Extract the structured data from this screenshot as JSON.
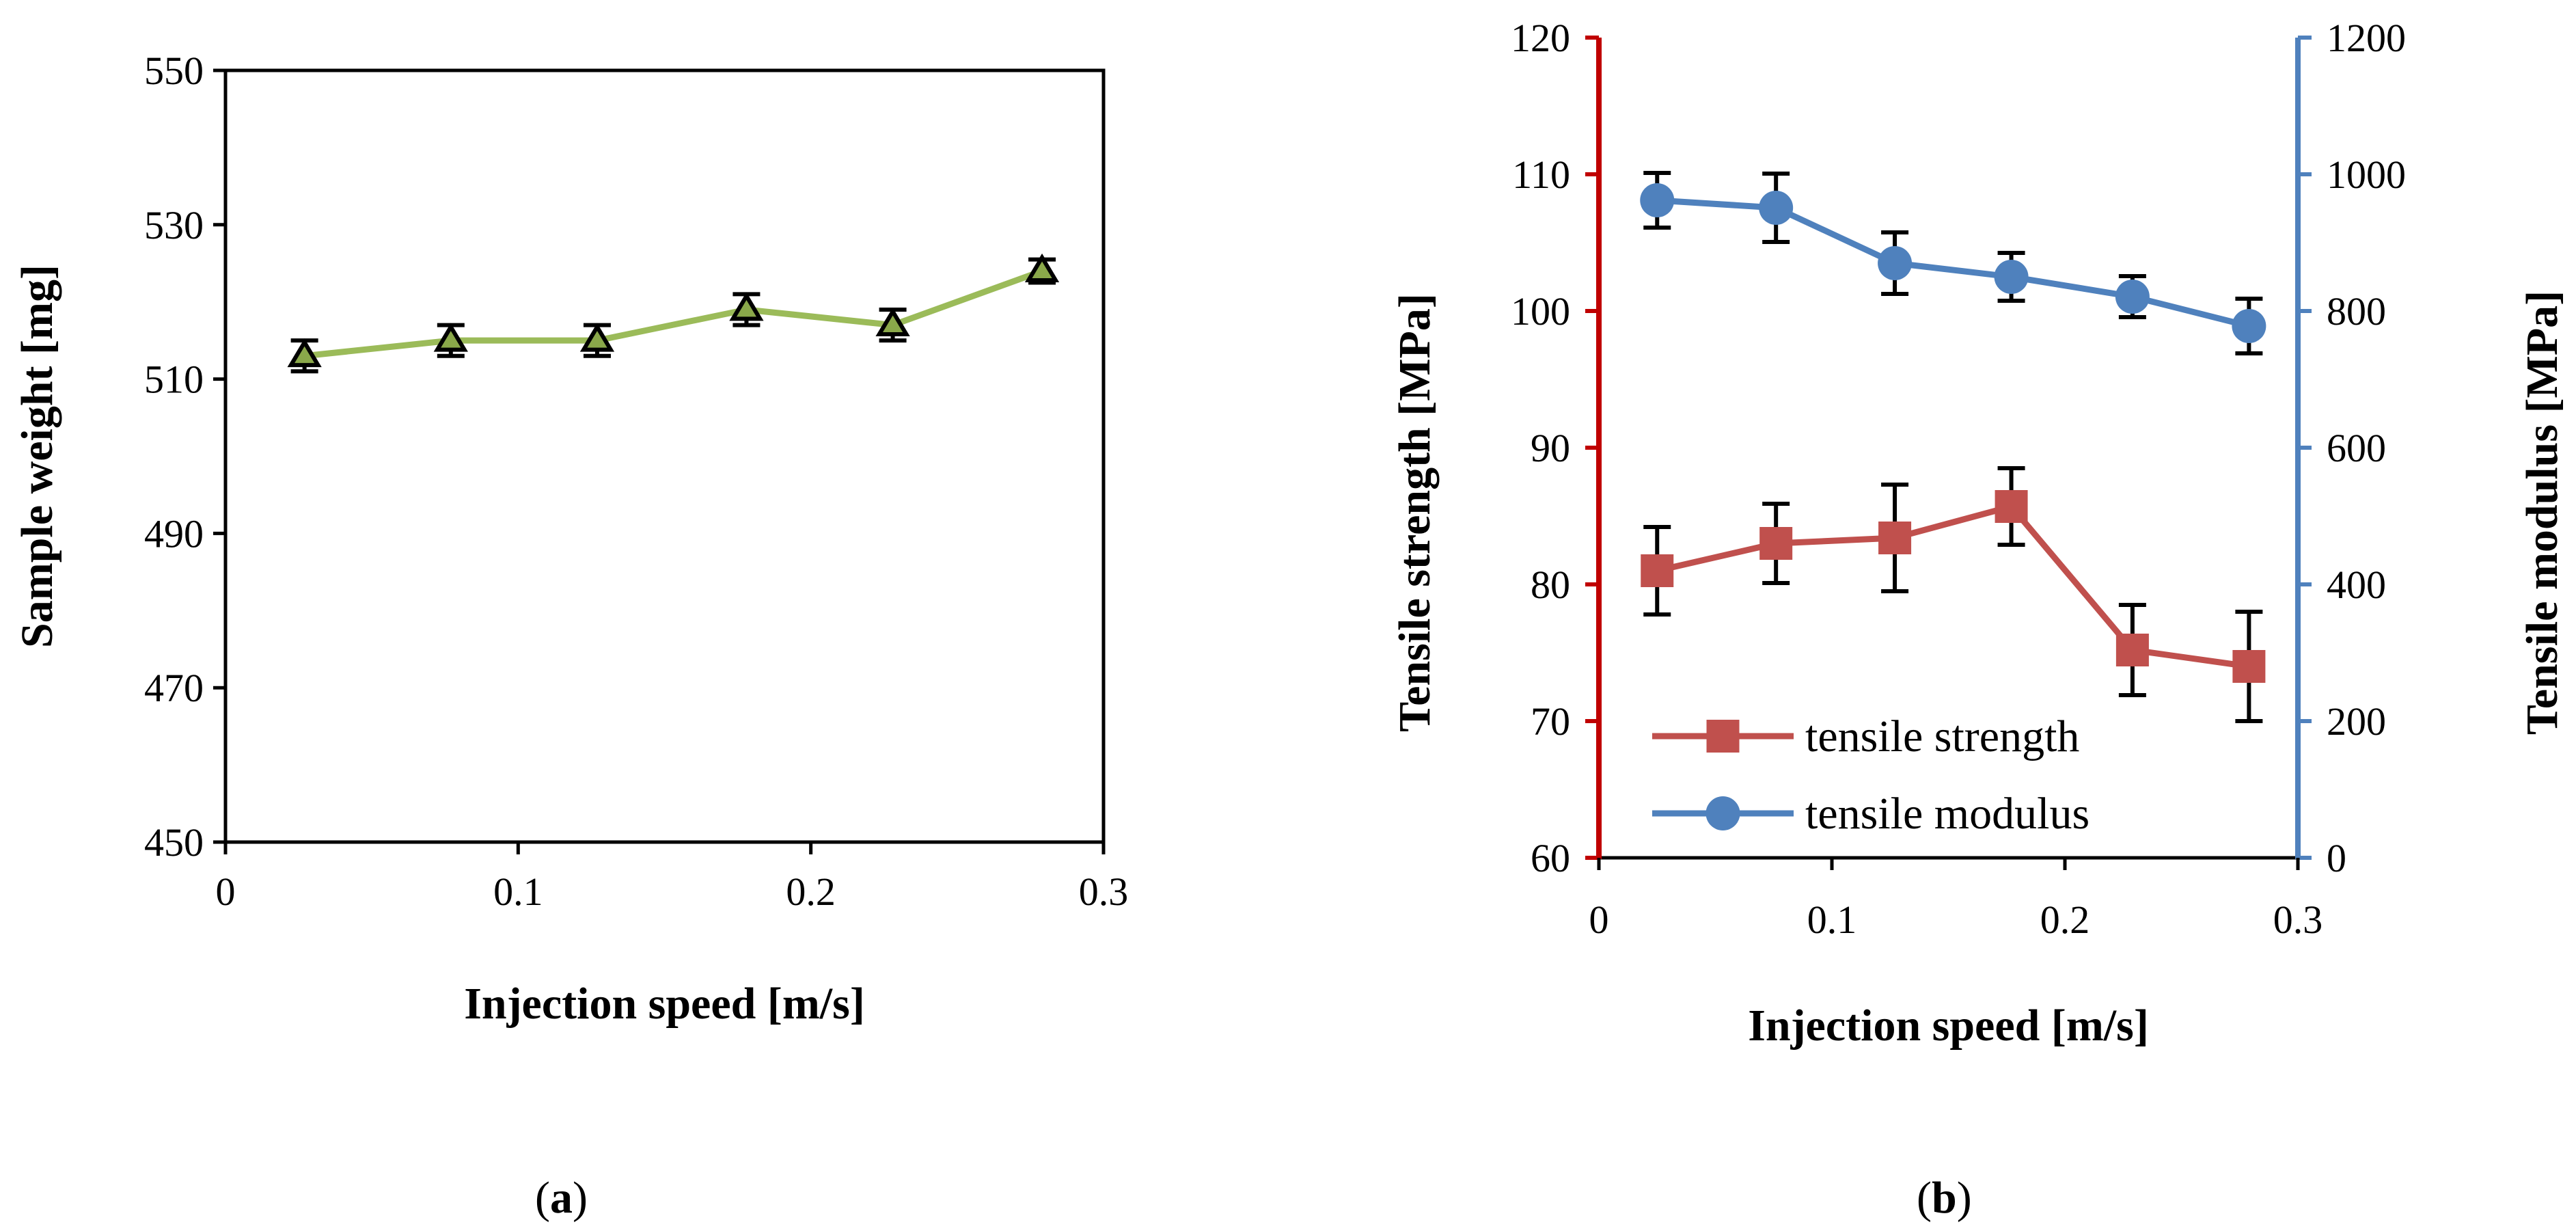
{
  "colors": {
    "weight_line": "#9bbb59",
    "weight_marker_fill": "#8aa84a",
    "strength": "#c0504d",
    "strength_axis": "#c00000",
    "modulus": "#4f81bd",
    "modulus_axis": "#4f81bd",
    "errorbar": "#000000"
  },
  "captions": {
    "a": "a",
    "b": "b"
  },
  "chart_data": [
    {
      "type": "line",
      "panel": "a",
      "xlabel": "Injection speed [m/s]",
      "ylabel": "Sample weight [mg]",
      "xlim": [
        0,
        0.3
      ],
      "ylim": [
        450,
        550
      ],
      "xticks": [
        "0",
        "0.1",
        "0.2",
        "0.3"
      ],
      "yticks": [
        "450",
        "470",
        "490",
        "510",
        "530",
        "550"
      ],
      "grid": false,
      "series": [
        {
          "marker": "triangle",
          "x": [
            0.027,
            0.077,
            0.127,
            0.178,
            0.228,
            0.279
          ],
          "values": [
            513,
            515,
            515,
            519,
            517,
            524
          ],
          "error": [
            2,
            2,
            2,
            2,
            2,
            1.5
          ]
        }
      ]
    },
    {
      "type": "line",
      "panel": "b",
      "xlabel": "Injection speed [m/s]",
      "ylabel": "Tensile strength [MPa]",
      "y2label": "Tensile modulus [MPa]",
      "xlim": [
        0,
        0.3
      ],
      "ylim": [
        60,
        120
      ],
      "y2lim": [
        0,
        1200
      ],
      "xticks": [
        "0",
        "0.1",
        "0.2",
        "0.3"
      ],
      "yticks": [
        "60",
        "70",
        "80",
        "90",
        "100",
        "110",
        "120"
      ],
      "y2ticks": [
        "0",
        "200",
        "400",
        "600",
        "800",
        "1000",
        "1200"
      ],
      "grid": false,
      "legend": "bottom-left",
      "series": [
        {
          "name": "tensile strength",
          "axis": "left",
          "marker": "square",
          "x": [
            0.025,
            0.076,
            0.127,
            0.177,
            0.229,
            0.279
          ],
          "values": [
            81.0,
            83.0,
            83.4,
            85.7,
            75.2,
            74.0
          ],
          "error": [
            3.2,
            2.9,
            3.9,
            2.8,
            3.3,
            4.0
          ]
        },
        {
          "name": "tensile modulus",
          "axis": "right",
          "marker": "circle",
          "x": [
            0.025,
            0.076,
            0.127,
            0.177,
            0.229,
            0.279
          ],
          "values": [
            962,
            951,
            870,
            850,
            821,
            778
          ],
          "error": [
            40,
            50,
            45,
            35,
            30,
            40
          ]
        }
      ]
    }
  ]
}
